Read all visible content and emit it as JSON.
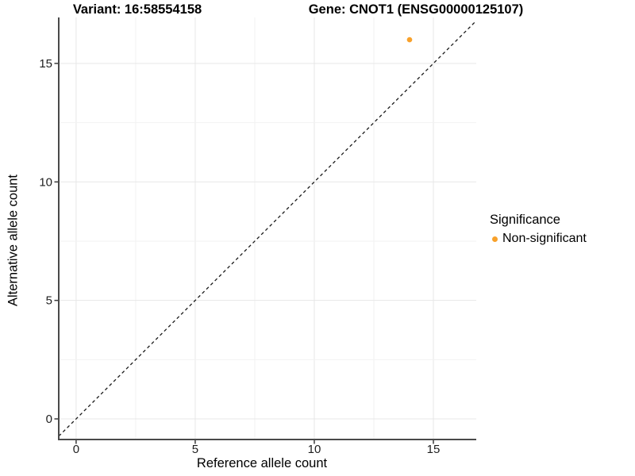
{
  "titles": {
    "variant": "Variant: 16:58554158",
    "gene": "Gene: CNOT1 (ENSG00000125107)"
  },
  "legend": {
    "title": "Significance",
    "items": [
      {
        "label": "Non-significant",
        "color": "#F8A12B"
      }
    ]
  },
  "colors": {
    "point_orange": "#F8A12B",
    "axis": "#4a4a4a",
    "tick": "#3a3a3a",
    "grid_major": "#e7e7e7",
    "grid_minor": "#f2f2f2",
    "dashed_line": "#1a1a1a",
    "background": "#ffffff"
  },
  "chart_data": {
    "type": "scatter",
    "title": "Variant: 16:58554158 | Gene: CNOT1 (ENSG00000125107)",
    "xlabel": "Reference allele count",
    "ylabel": "Alternative allele count",
    "xlim": [
      -0.73,
      16.8
    ],
    "ylim": [
      -0.87,
      16.94
    ],
    "xticks": [
      0,
      5,
      10,
      15
    ],
    "yticks": [
      0,
      5,
      10,
      15
    ],
    "grid": "on",
    "grid_interval": 2.5,
    "legend_position": "right",
    "identity_line": {
      "type": "y=x",
      "style": "dashed",
      "color": "#1a1a1a"
    },
    "series": [
      {
        "name": "Non-significant",
        "color": "#F8A12B",
        "marker": "circle",
        "points": [
          {
            "x": 14,
            "y": 16
          }
        ]
      }
    ]
  }
}
